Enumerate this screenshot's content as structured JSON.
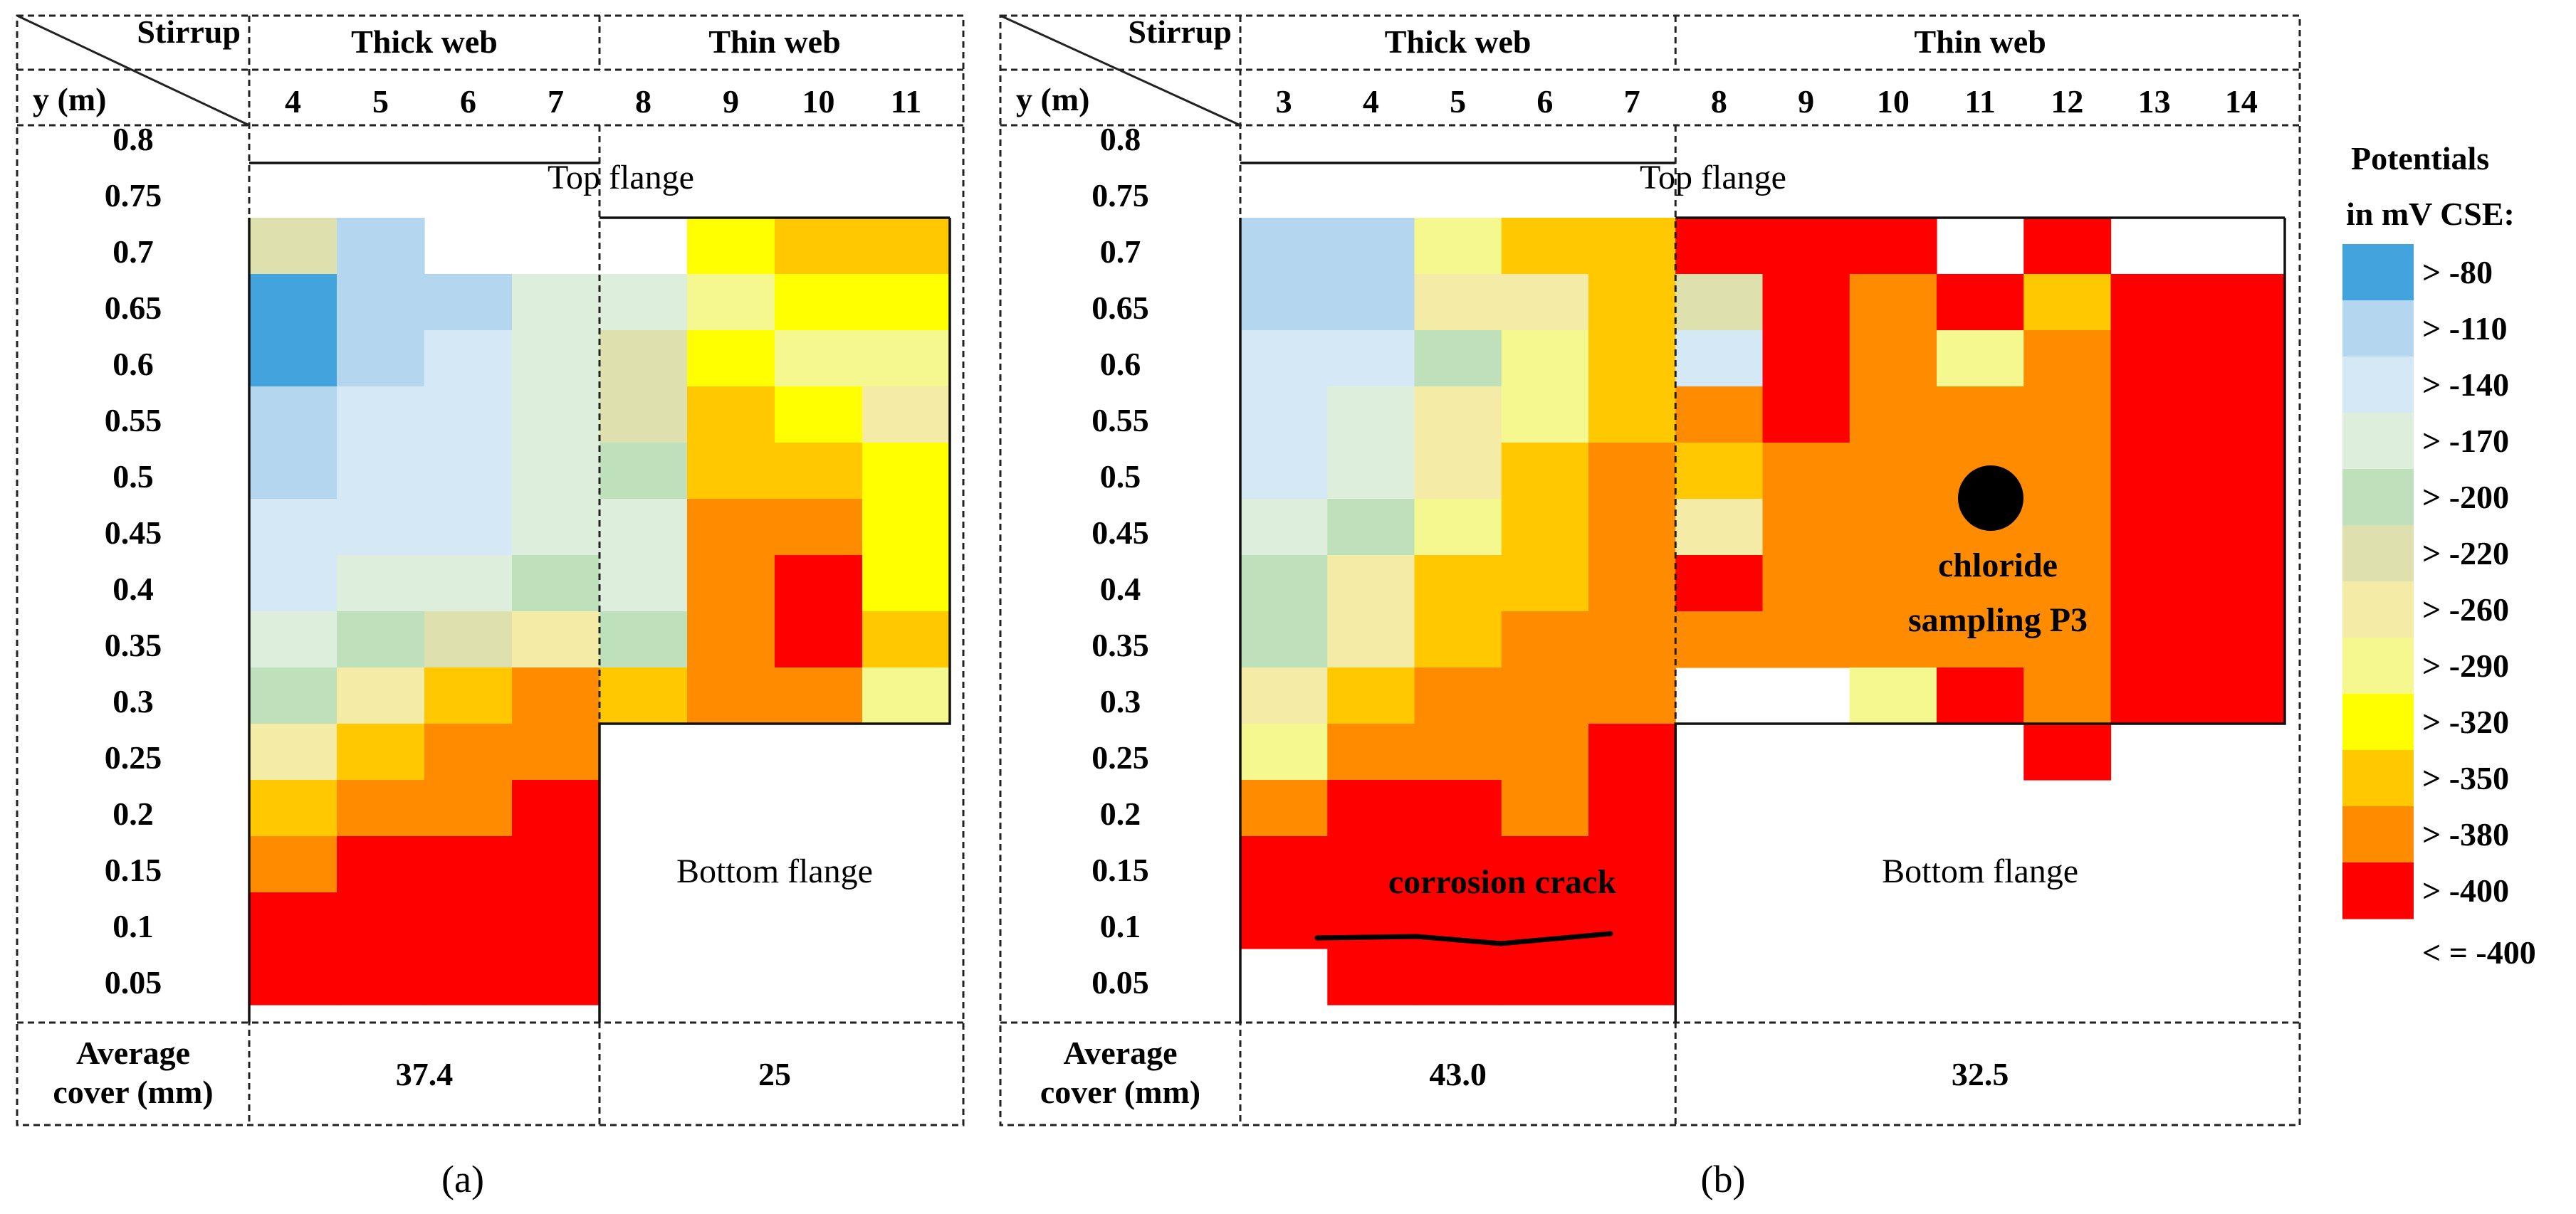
{
  "chart_data": [
    {
      "type": "heatmap",
      "panel_label": "(a)",
      "corner_top_label": "Stirrup",
      "corner_bottom_label": "y (m)",
      "y_values": [
        "0.8",
        "0.75",
        "0.7",
        "0.65",
        "0.6",
        "0.55",
        "0.5",
        "0.45",
        "0.4",
        "0.35",
        "0.3",
        "0.25",
        "0.2",
        "0.15",
        "0.1",
        "0.05"
      ],
      "groups": [
        {
          "name": "Thick web",
          "stirrups": [
            "4",
            "5",
            "6",
            "7"
          ]
        },
        {
          "name": "Thin web",
          "stirrups": [
            "8",
            "9",
            "10",
            "11"
          ]
        }
      ],
      "region_labels": {
        "top_flange": "Top flange",
        "bottom_flange": "Bottom flange"
      },
      "avg_cover_label": [
        "Average",
        "cover (mm)"
      ],
      "avg_cover_values": [
        "37.4",
        "25"
      ],
      "grid_rows": [
        "0.7",
        "0.65",
        "0.6",
        "0.55",
        "0.5",
        "0.45",
        "0.4",
        "0.35",
        "0.3",
        "0.25",
        "0.2",
        "0.15",
        "0.1",
        "0.05"
      ],
      "cell_classes": [
        [
          5,
          1,
          null,
          null,
          null,
          8,
          9,
          9
        ],
        [
          0,
          1,
          1,
          3,
          3,
          7,
          8,
          8
        ],
        [
          0,
          1,
          2,
          3,
          5,
          8,
          7,
          7
        ],
        [
          1,
          2,
          2,
          3,
          5,
          9,
          8,
          6
        ],
        [
          1,
          2,
          2,
          3,
          4,
          9,
          9,
          8
        ],
        [
          2,
          2,
          2,
          3,
          3,
          10,
          10,
          8
        ],
        [
          2,
          3,
          3,
          4,
          3,
          10,
          11,
          8
        ],
        [
          3,
          4,
          5,
          6,
          4,
          10,
          11,
          9
        ],
        [
          4,
          6,
          9,
          10,
          9,
          10,
          10,
          7
        ],
        [
          6,
          9,
          10,
          10,
          null,
          null,
          null,
          null
        ],
        [
          9,
          10,
          10,
          11,
          null,
          null,
          null,
          null
        ],
        [
          10,
          11,
          11,
          11,
          null,
          null,
          null,
          null
        ],
        [
          11,
          12,
          11,
          12,
          null,
          null,
          null,
          null
        ],
        [
          12,
          12,
          11,
          12,
          null,
          null,
          null,
          null
        ]
      ]
    },
    {
      "type": "heatmap",
      "panel_label": "(b)",
      "corner_top_label": "Stirrup",
      "corner_bottom_label": "y (m)",
      "y_values": [
        "0.8",
        "0.75",
        "0.7",
        "0.65",
        "0.6",
        "0.55",
        "0.5",
        "0.45",
        "0.4",
        "0.35",
        "0.3",
        "0.25",
        "0.2",
        "0.15",
        "0.1",
        "0.05"
      ],
      "groups": [
        {
          "name": "Thick web",
          "stirrups": [
            "3",
            "4",
            "5",
            "6",
            "7"
          ]
        },
        {
          "name": "Thin web",
          "stirrups": [
            "8",
            "9",
            "10",
            "11",
            "12",
            "13",
            "14"
          ]
        }
      ],
      "region_labels": {
        "top_flange": "Top flange",
        "bottom_flange": "Bottom flange"
      },
      "annotations": {
        "sampling": [
          "chloride",
          "sampling P3"
        ],
        "crack": "corrosion crack"
      },
      "avg_cover_label": [
        "Average",
        "cover (mm)"
      ],
      "avg_cover_values": [
        "43.0",
        "32.5"
      ],
      "grid_rows": [
        "0.7",
        "0.65",
        "0.6",
        "0.55",
        "0.5",
        "0.45",
        "0.4",
        "0.35",
        "0.3",
        "0.25",
        "0.2",
        "0.15",
        "0.1",
        "0.05"
      ],
      "cell_classes": [
        [
          1,
          1,
          7,
          9,
          9,
          12,
          11,
          12,
          null,
          12,
          null,
          null
        ],
        [
          1,
          1,
          6,
          6,
          9,
          5,
          12,
          10,
          11,
          9,
          11,
          11
        ],
        [
          2,
          2,
          4,
          7,
          9,
          2,
          11,
          10,
          7,
          10,
          11,
          11
        ],
        [
          2,
          3,
          6,
          7,
          9,
          10,
          11,
          10,
          10,
          10,
          11,
          11
        ],
        [
          2,
          3,
          6,
          9,
          10,
          9,
          10,
          10,
          10,
          10,
          11,
          11
        ],
        [
          3,
          4,
          7,
          9,
          10,
          6,
          10,
          10,
          10,
          10,
          11,
          11
        ],
        [
          4,
          6,
          9,
          9,
          10,
          11,
          10,
          10,
          10,
          10,
          11,
          11
        ],
        [
          4,
          6,
          9,
          10,
          10,
          10,
          10,
          10,
          10,
          10,
          11,
          11
        ],
        [
          6,
          9,
          10,
          10,
          10,
          null,
          null,
          7,
          11,
          10,
          11,
          11
        ],
        [
          7,
          10,
          10,
          10,
          11,
          null,
          null,
          null,
          null,
          11,
          null,
          null
        ],
        [
          10,
          11,
          11,
          10,
          11,
          null,
          null,
          null,
          null,
          null,
          null,
          null
        ],
        [
          11,
          11,
          11,
          11,
          12,
          null,
          null,
          null,
          null,
          null,
          null,
          null
        ],
        [
          11,
          12,
          12,
          12,
          12,
          null,
          null,
          null,
          null,
          null,
          null,
          null
        ],
        [
          null,
          12,
          12,
          12,
          12,
          null,
          null,
          null,
          null,
          null,
          null,
          null
        ]
      ]
    }
  ],
  "legend": {
    "title": [
      "Potentials",
      "in mV CSE:"
    ],
    "items": [
      {
        "label": "> -80",
        "color": "#43A3DC"
      },
      {
        "label": "> -110",
        "color": "#B4D6EE"
      },
      {
        "label": "> -140",
        "color": "#D5E8F5"
      },
      {
        "label": "> -170",
        "color": "#DEEEDD"
      },
      {
        "label": "> -200",
        "color": "#BEE0BA"
      },
      {
        "label": "> -220",
        "color": "#DEE0AE"
      },
      {
        "label": "> -260",
        "color": "#F4ECA6"
      },
      {
        "label": "> -290",
        "color": "#F4F88E"
      },
      {
        "label": "> -320",
        "color": "#FFFF00"
      },
      {
        "label": "> -350",
        "color": "#FFC800"
      },
      {
        "label": "> -380",
        "color": "#FF8C00"
      },
      {
        "label": "> -400",
        "color": "#FF0000"
      },
      {
        "label": "< = -400",
        "color": "#FF0000"
      }
    ]
  }
}
